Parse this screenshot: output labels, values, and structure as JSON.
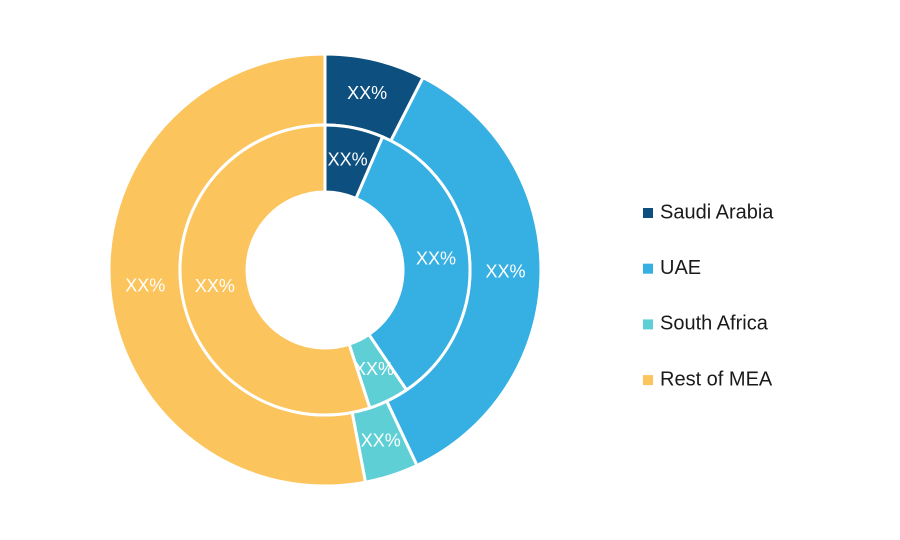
{
  "chart_data": {
    "type": "donut",
    "categories": [
      "Saudi Arabia",
      "UAE",
      "South Africa",
      "Rest of MEA"
    ],
    "colors": [
      "#0d4f7e",
      "#36b0e2",
      "#5fcfd6",
      "#fcc45c"
    ],
    "series": [
      {
        "values": [
          7.5,
          35.5,
          4,
          53
        ],
        "value_labels": [
          "XX%",
          "XX%",
          "XX%",
          "XX%"
        ]
      },
      {
        "values": [
          6.5,
          34,
          4.5,
          55
        ],
        "value_labels": [
          "XX%",
          "XX%",
          "XX%",
          "XX%"
        ]
      }
    ]
  }
}
